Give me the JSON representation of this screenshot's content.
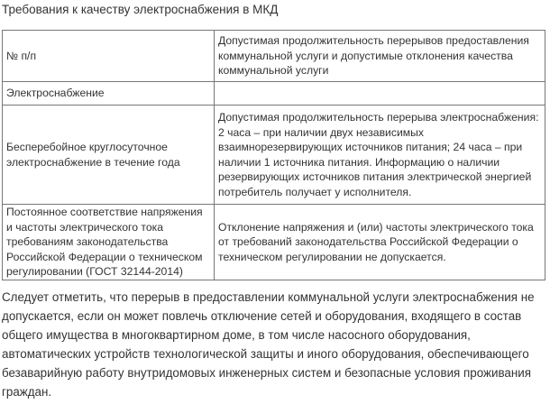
{
  "title": "Требования к качеству электроснабжения в МКД",
  "table": {
    "rows": [
      [
        [
          "№ п/п"
        ],
        [
          "Допустимая продолжительность перерывов предоставления",
          "коммунальной услуги и допустимые отклонения качества",
          "коммунальной услуги"
        ]
      ],
      [
        [
          "Электроснабжение"
        ],
        []
      ],
      [
        [
          "Бесперебойное круглосуточное",
          "электроснабжение в течение года"
        ],
        [
          "Допустимая продолжительность перерыва электроснабжения:",
          "2 часа – при наличии двух независимых",
          "взаимнорезервирующих источников питания; 24 часа – при",
          "наличии 1 источника питания. Информацию о наличии",
          "резервирующих источников питания электрической энергией",
          "потребитель получает у исполнителя."
        ]
      ],
      [
        [
          "Постоянное соответствие напряжения",
          "и частоты электрического тока",
          "требованиям законодательства",
          "Российской Федерации о техническом",
          "регулировании (ГОСТ 32144-2014)"
        ],
        [
          "Отклонение напряжения и (или) частоты электрического тока",
          "от требований законодательства Российской Федерации о",
          "техническом регулировании не допускается."
        ]
      ]
    ]
  },
  "paragraph": [
    "Следует отметить, что перерыв в предоставлении коммунальной услуги электроснабжения не",
    "допускается, если он может повлечь отключение сетей и оборудования, входящего в состав",
    "общего имущества в многоквартирном доме, в том числе насосного оборудования,",
    "автоматических устройств технологической защиты и иного оборудования, обеспечивающего",
    "безаварийную работу внутридомовых инженерных систем и безопасные условия проживания",
    "граждан."
  ]
}
